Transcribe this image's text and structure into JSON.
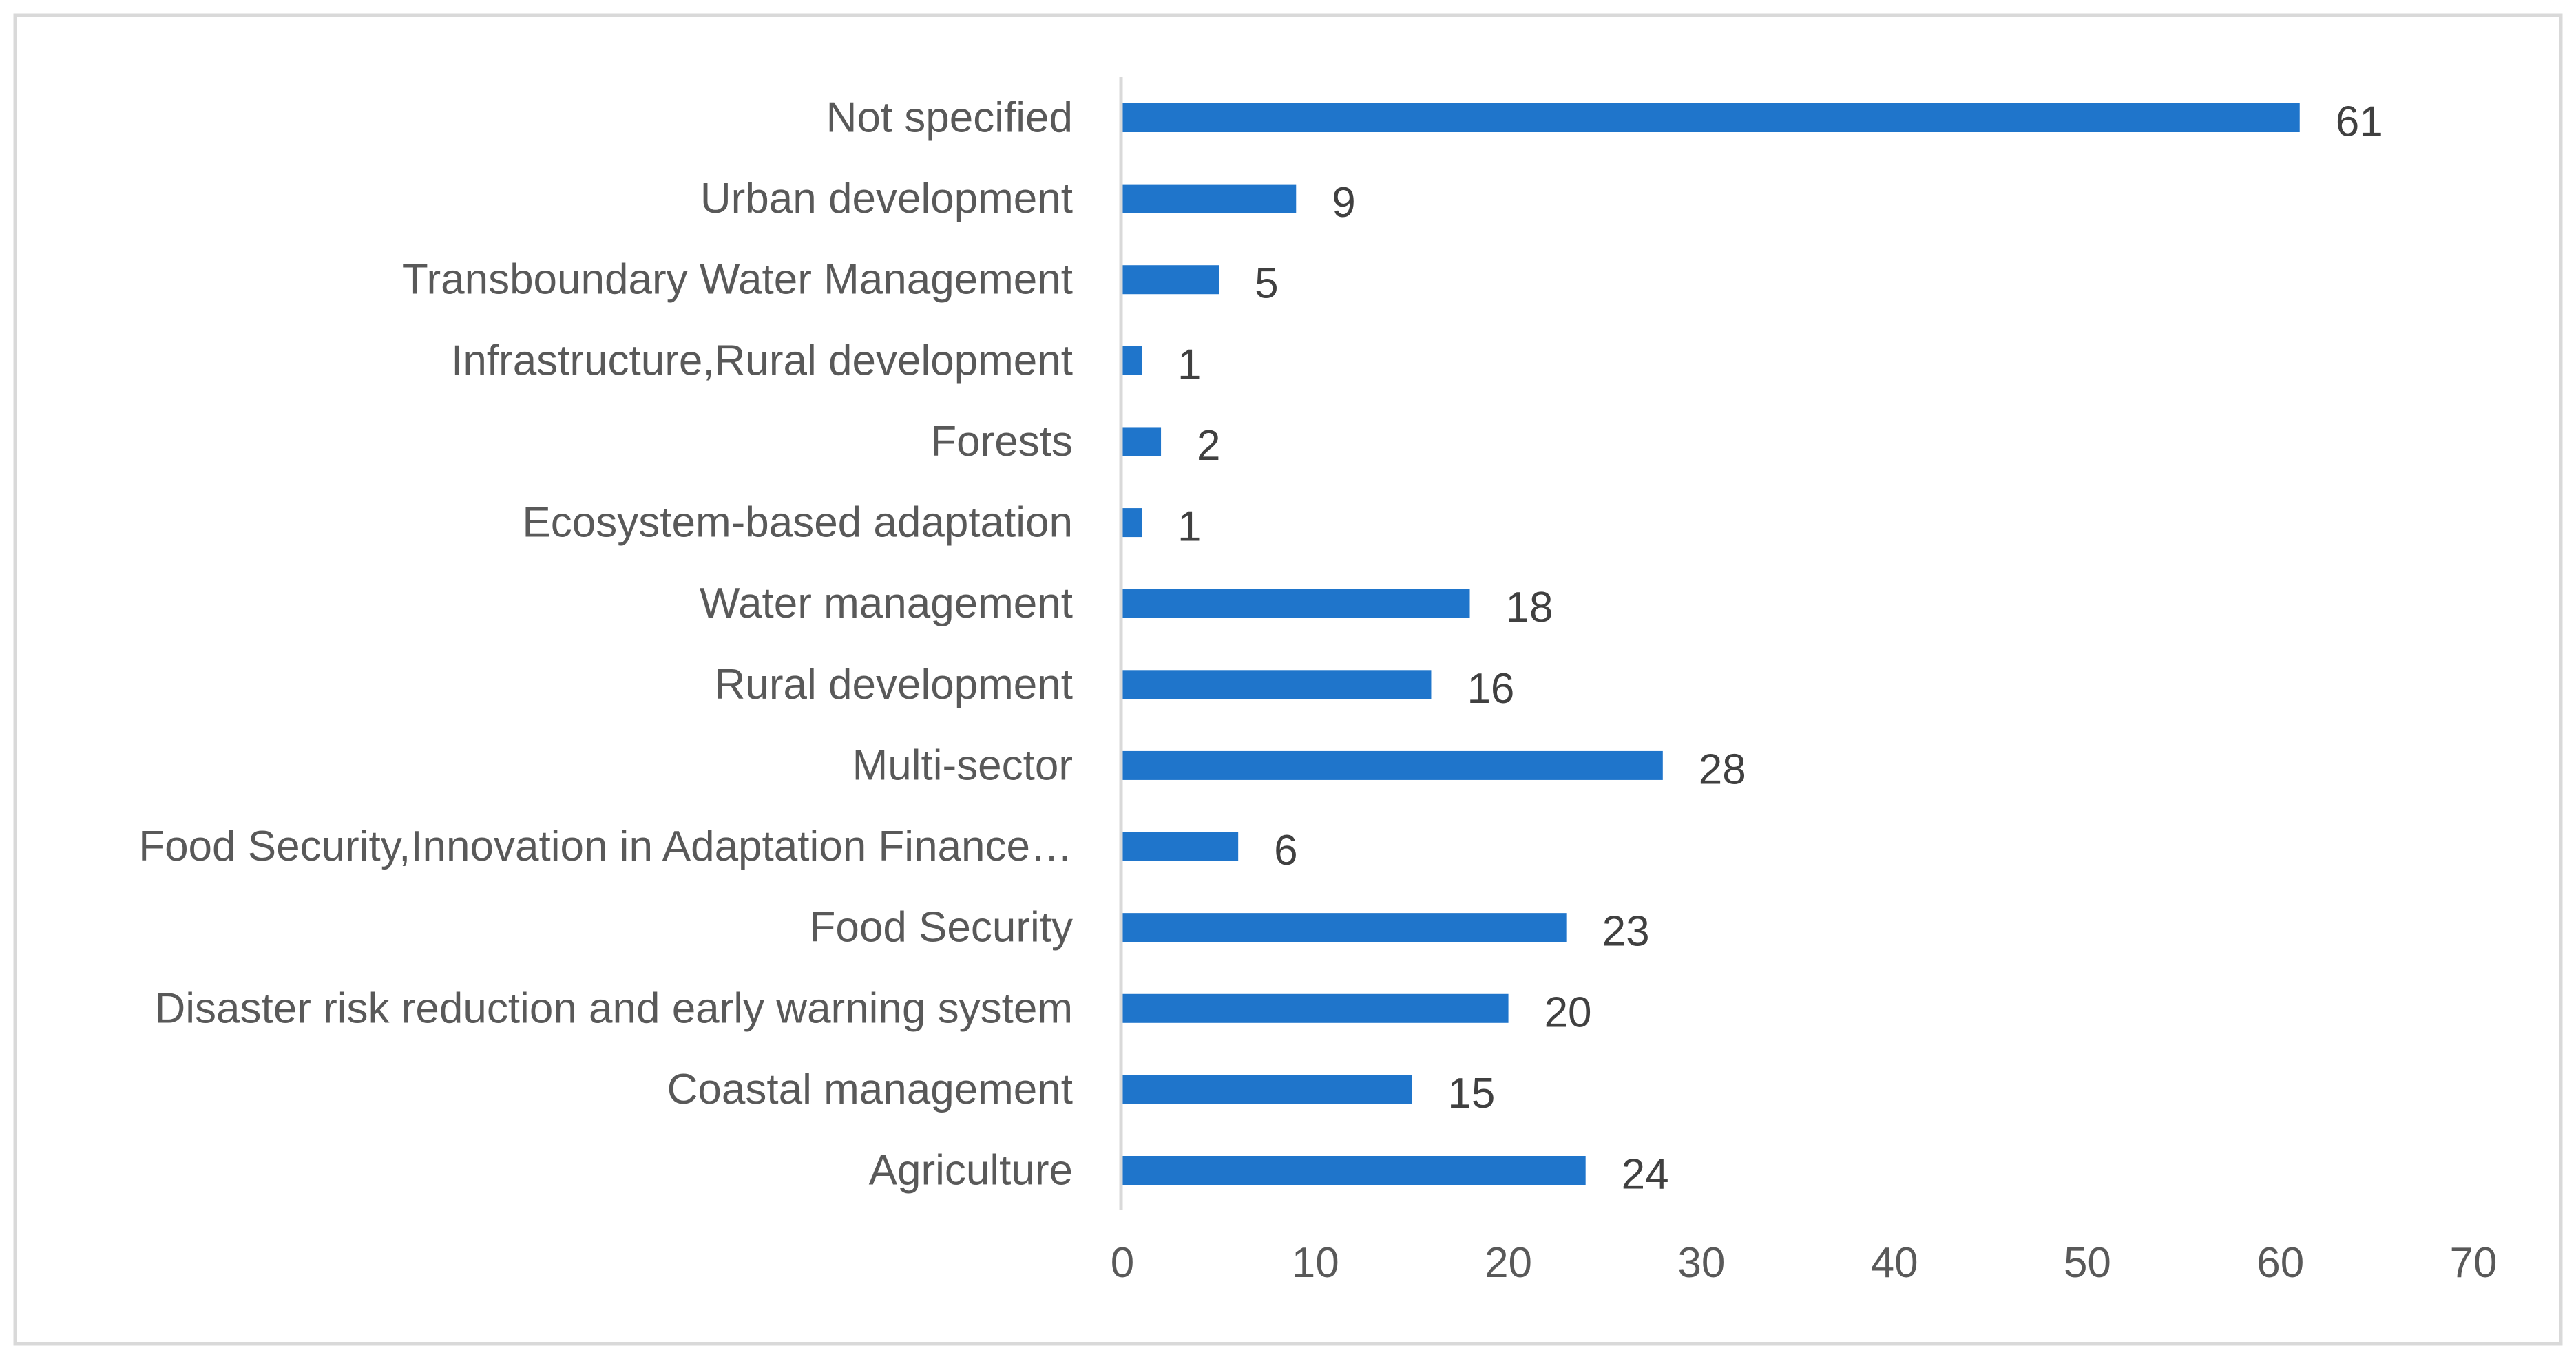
{
  "colors": {
    "bar": "#1f75cb",
    "frame": "#d9d9d9",
    "axis_text": "#595959",
    "data_text": "#404040"
  },
  "chart_data": {
    "type": "bar",
    "orientation": "horizontal",
    "title": "",
    "xlabel": "",
    "ylabel": "",
    "xlim": [
      0,
      70
    ],
    "xticks": [
      0,
      10,
      20,
      30,
      40,
      50,
      60,
      70
    ],
    "grid": false,
    "legend": "none",
    "categories": [
      "Agriculture",
      "Coastal management",
      "Disaster risk reduction and early warning system",
      "Food Security",
      "Food Security,Innovation in Adaptation Finance…",
      "Multi-sector",
      "Rural development",
      "Water management",
      "Ecosystem-based adaptation",
      "Forests",
      "Infrastructure,Rural development",
      "Transboundary Water Management",
      "Urban development",
      "Not specified"
    ],
    "values": [
      24,
      15,
      20,
      23,
      6,
      28,
      16,
      18,
      1,
      2,
      1,
      5,
      9,
      61
    ]
  }
}
